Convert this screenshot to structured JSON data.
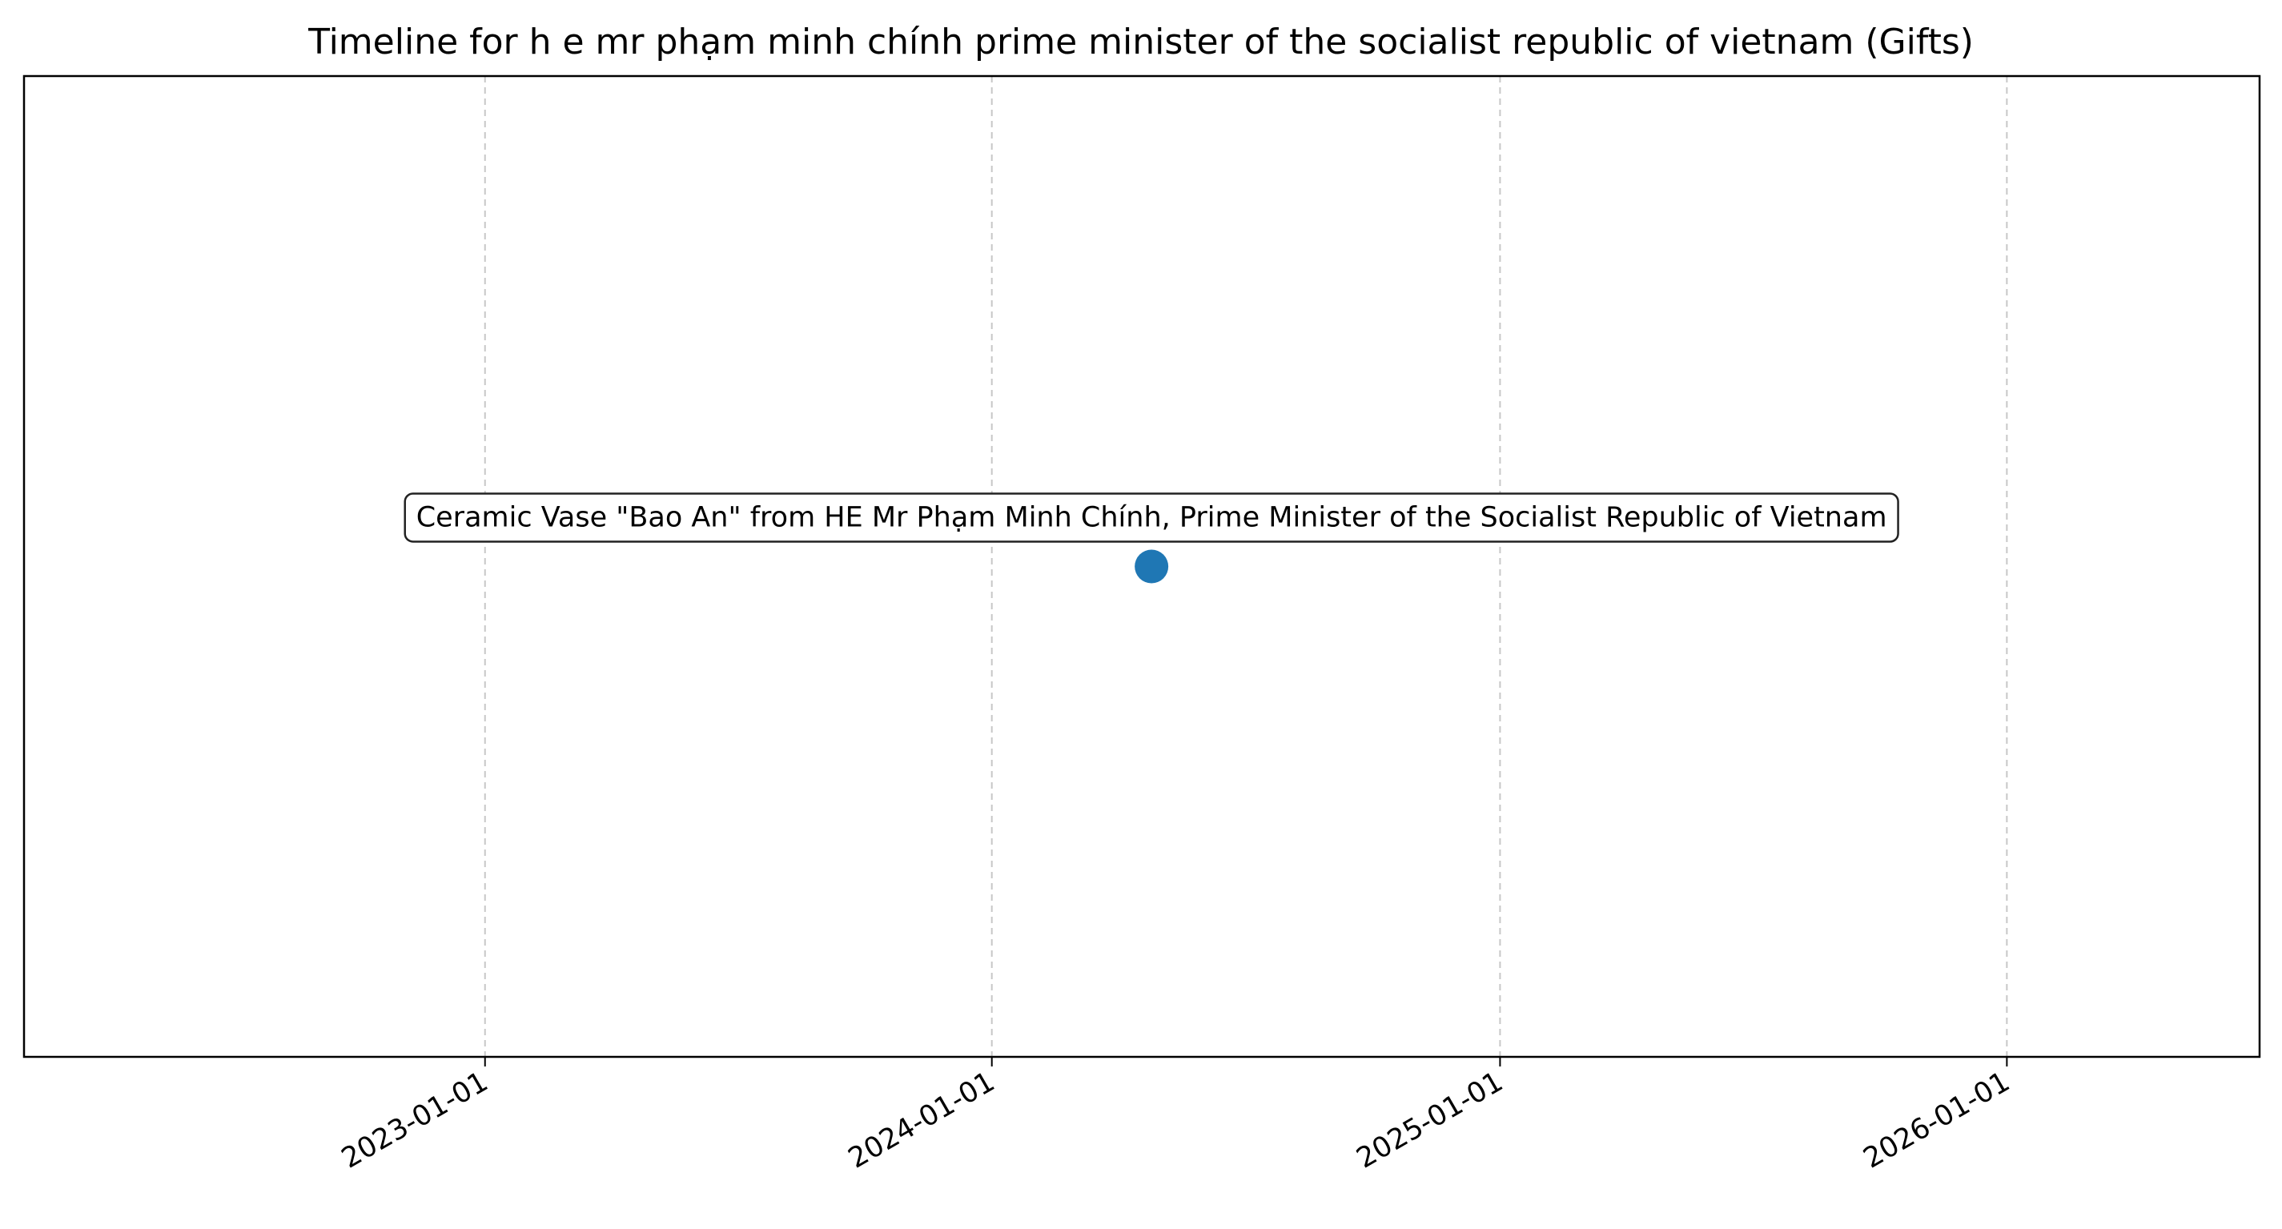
{
  "chart_data": {
    "type": "scatter",
    "title": "Timeline for h e mr phạm minh chính prime minister of the socialist republic of vietnam (Gifts)",
    "xlabel": "",
    "ylabel": "",
    "x_axis_type": "date",
    "xlim": [
      "2022-02-03",
      "2026-07-02"
    ],
    "ylim": [
      -1,
      1
    ],
    "y_ticks_visible": false,
    "grid": "x-axis only, dashed",
    "x_ticks": [
      "2023-01-01",
      "2024-01-01",
      "2025-01-01",
      "2026-01-01"
    ],
    "points": [
      {
        "x": "2024-04-25",
        "y": 0,
        "label": "Ceramic Vase \"Bao An\" from HE Mr Phạm Minh Chính, Prime Minister of the Socialist Republic of Vietnam"
      }
    ],
    "marker_color": "#1f77b4",
    "annotation_box": "rounded, white fill, dark border"
  }
}
